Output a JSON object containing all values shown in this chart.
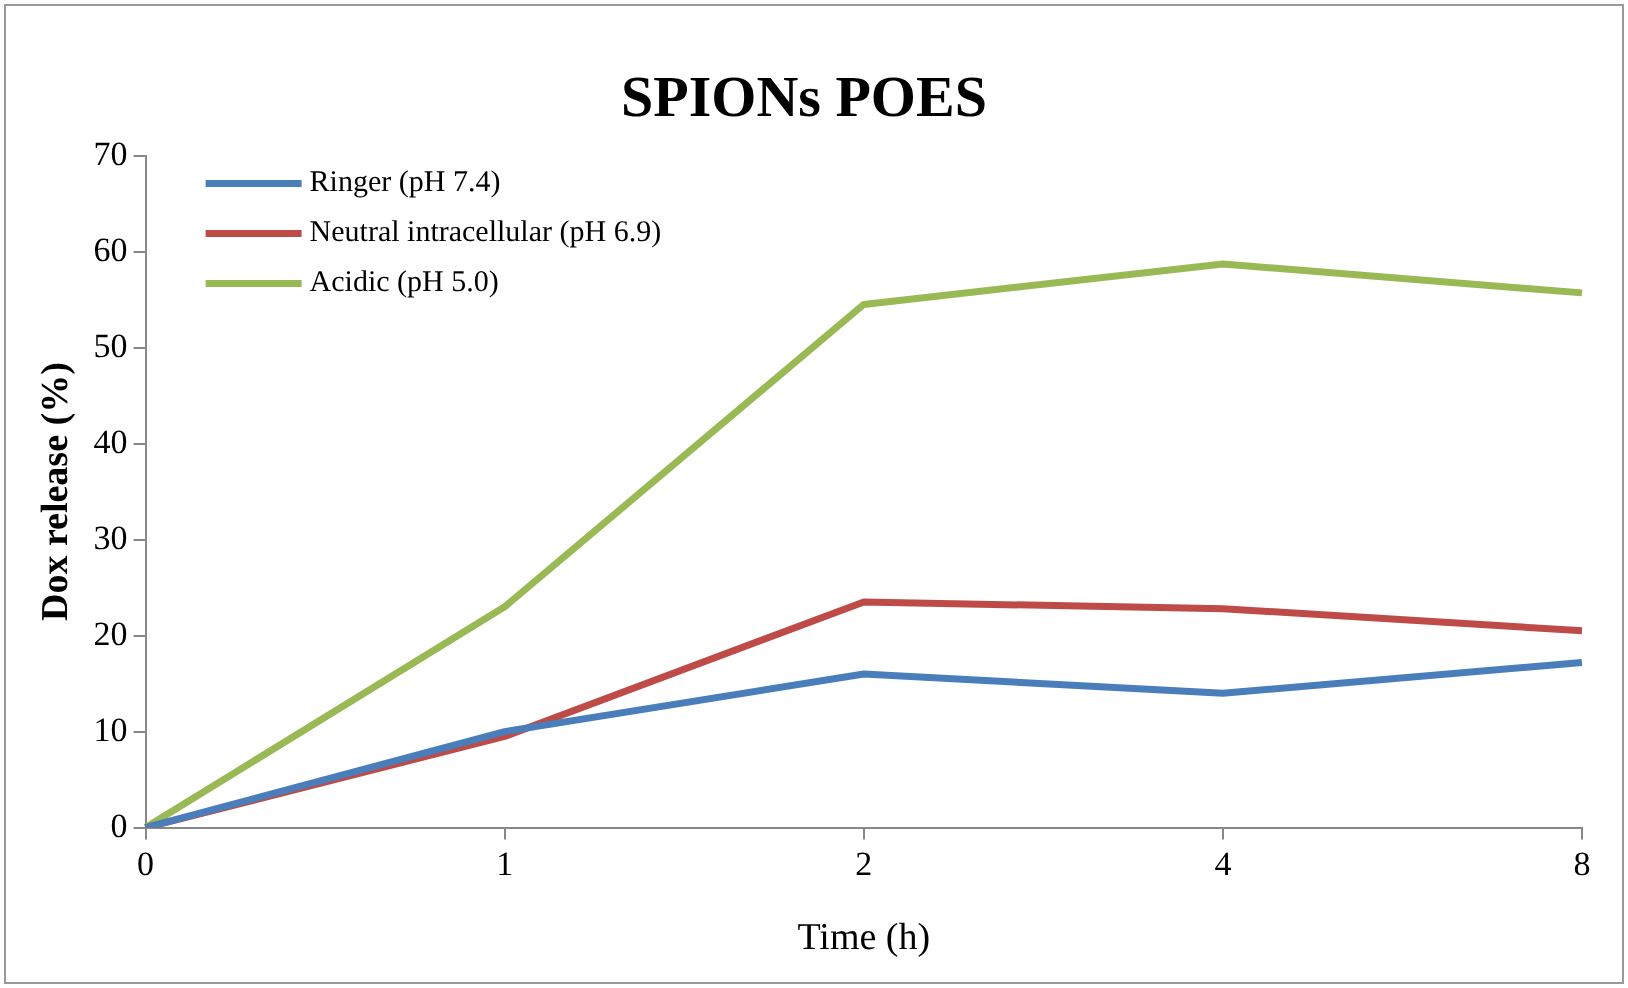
{
  "chart_data": {
    "type": "line",
    "title": "SPIONs POES",
    "xlabel": "Time (h)",
    "ylabel": "Dox release (%)",
    "categories": [
      "0",
      "1",
      "2",
      "4",
      "8"
    ],
    "series": [
      {
        "name": "Ringer (pH 7.4)",
        "color": "#4a7ebb",
        "values": [
          0,
          10,
          16,
          14,
          17.2
        ]
      },
      {
        "name": "Neutral intracellular (pH 6.9)",
        "color": "#be4b48",
        "values": [
          0,
          9.5,
          23.5,
          22.8,
          20.5
        ]
      },
      {
        "name": "Acidic (pH 5.0)",
        "color": "#98b954",
        "values": [
          0,
          23,
          54.5,
          58.7,
          55.7
        ]
      }
    ],
    "ylim": [
      0,
      70
    ],
    "yticks": [
      0,
      10,
      20,
      30,
      40,
      50,
      60,
      70
    ],
    "grid": false,
    "legend": "top left",
    "marker": "none",
    "line_style": "solid"
  }
}
